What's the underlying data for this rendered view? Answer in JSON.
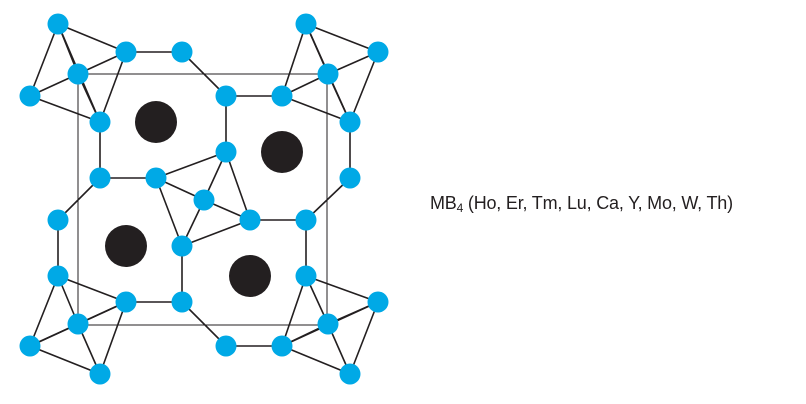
{
  "structure": {
    "formula_prefix": "MB",
    "formula_subscript": "4",
    "formula_elements": "(Ho, Er, Tm, Lu, Ca, Y, Mo, W, Th)"
  },
  "colors": {
    "boron_atom": "#00a9e6",
    "metal_atom": "#231f20",
    "bond": "#231f20",
    "unit_cell": "#231f20"
  }
}
